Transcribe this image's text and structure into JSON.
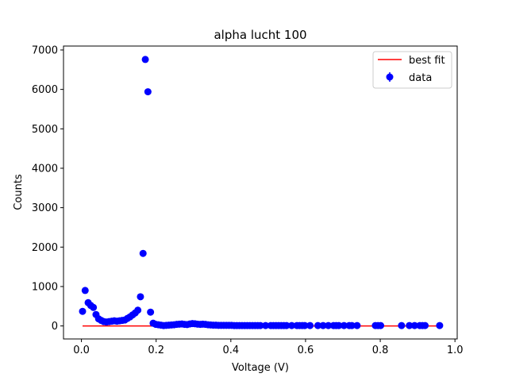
{
  "chart_data": {
    "type": "scatter",
    "title": "alpha lucht 100",
    "xlabel": "Voltage (V)",
    "ylabel": "Counts",
    "xlim": [
      -0.048,
      1.006
    ],
    "ylim": [
      -330,
      7100
    ],
    "xticks": [
      0.0,
      0.2,
      0.4,
      0.6,
      0.8,
      1.0
    ],
    "xtick_labels": [
      "0.0",
      "0.2",
      "0.4",
      "0.6",
      "0.8",
      "1.0"
    ],
    "yticks": [
      0,
      1000,
      2000,
      3000,
      4000,
      5000,
      6000,
      7000
    ],
    "ytick_labels": [
      "0",
      "1000",
      "2000",
      "3000",
      "4000",
      "5000",
      "6000",
      "7000"
    ],
    "grid": false,
    "legend_position": "top-right",
    "legend": [
      {
        "label": "best fit",
        "kind": "line",
        "color": "#ff0000"
      },
      {
        "label": "data",
        "kind": "errorbar-marker",
        "color": "#0000ff"
      }
    ],
    "series": [
      {
        "name": "data",
        "kind": "scatter",
        "color": "#0000ff",
        "x": [
          0.003,
          0.01,
          0.018,
          0.025,
          0.032,
          0.039,
          0.046,
          0.053,
          0.06,
          0.067,
          0.074,
          0.081,
          0.088,
          0.095,
          0.102,
          0.109,
          0.116,
          0.123,
          0.13,
          0.137,
          0.144,
          0.151,
          0.158,
          0.165,
          0.171,
          0.178,
          0.185,
          0.192,
          0.199,
          0.206,
          0.213,
          0.22,
          0.227,
          0.234,
          0.241,
          0.248,
          0.255,
          0.262,
          0.269,
          0.276,
          0.283,
          0.29,
          0.297,
          0.304,
          0.311,
          0.318,
          0.325,
          0.332,
          0.339,
          0.346,
          0.353,
          0.36,
          0.367,
          0.374,
          0.381,
          0.388,
          0.395,
          0.402,
          0.409,
          0.416,
          0.423,
          0.43,
          0.437,
          0.444,
          0.451,
          0.458,
          0.465,
          0.472,
          0.479,
          0.493,
          0.507,
          0.514,
          0.521,
          0.528,
          0.535,
          0.542,
          0.549,
          0.563,
          0.577,
          0.584,
          0.591,
          0.598,
          0.612,
          0.633,
          0.647,
          0.661,
          0.675,
          0.682,
          0.689,
          0.703,
          0.717,
          0.724,
          0.738,
          0.787,
          0.794,
          0.801,
          0.857,
          0.878,
          0.892,
          0.906,
          0.913,
          0.92,
          0.959
        ],
        "y": [
          370,
          900,
          590,
          520,
          470,
          290,
          180,
          140,
          110,
          100,
          110,
          120,
          130,
          120,
          130,
          140,
          150,
          190,
          230,
          280,
          330,
          400,
          740,
          1840,
          6760,
          5940,
          350,
          70,
          40,
          30,
          20,
          10,
          15,
          20,
          25,
          30,
          40,
          45,
          50,
          40,
          35,
          50,
          60,
          55,
          45,
          40,
          45,
          40,
          30,
          25,
          20,
          20,
          15,
          15,
          15,
          15,
          15,
          15,
          10,
          10,
          10,
          10,
          10,
          10,
          10,
          10,
          10,
          10,
          10,
          10,
          10,
          10,
          10,
          10,
          10,
          10,
          10,
          10,
          10,
          10,
          10,
          10,
          10,
          10,
          10,
          10,
          10,
          10,
          10,
          10,
          10,
          10,
          10,
          10,
          10,
          10,
          10,
          10,
          10,
          10,
          10,
          10,
          10
        ]
      },
      {
        "name": "best fit",
        "kind": "line",
        "color": "#ff0000",
        "x": [
          0.003,
          0.959
        ],
        "y": [
          0,
          0
        ]
      }
    ]
  }
}
